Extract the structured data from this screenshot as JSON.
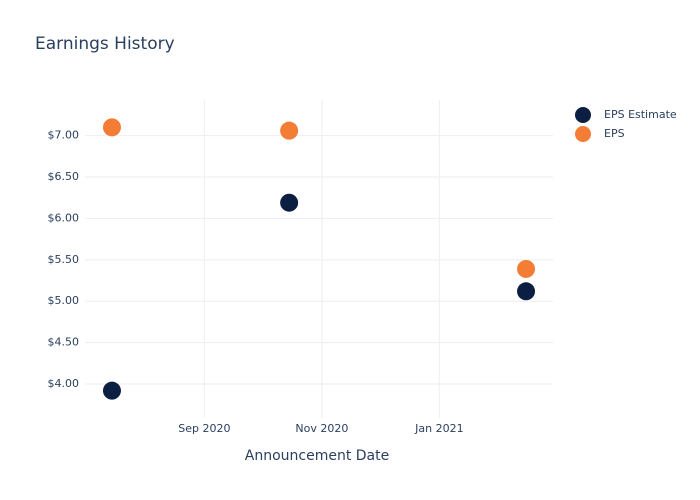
{
  "chart_data": {
    "type": "scatter",
    "title": "Earnings History",
    "x_label": "Announcement Date",
    "x": [
      "2020-07",
      "2020-10",
      "2021-02"
    ],
    "series": [
      {
        "name": "EPS Estimate",
        "color": "#0b1f43",
        "values": [
          3.92,
          6.19,
          5.12
        ]
      },
      {
        "name": "EPS",
        "color": "#f47d35",
        "values": [
          7.1,
          7.06,
          5.39
        ]
      }
    ],
    "xlim": [
      "2020-07",
      "2021-03"
    ],
    "xticks": [
      {
        "value": "2020-09",
        "label": "Sep 2020"
      },
      {
        "value": "2020-11",
        "label": "Nov 2020"
      },
      {
        "value": "2021-01",
        "label": "Jan 2021"
      }
    ],
    "ylim": [
      3.59,
      7.43
    ],
    "yticks": [
      {
        "value": 4,
        "label": "$4.00"
      },
      {
        "value": 4.5,
        "label": "$4.50"
      },
      {
        "value": 5,
        "label": "$5.00"
      },
      {
        "value": 5.5,
        "label": "$5.50"
      },
      {
        "value": 6,
        "label": "$6.00"
      },
      {
        "value": 6.5,
        "label": "$6.50"
      },
      {
        "value": 7,
        "label": "$7.00"
      }
    ],
    "grid": true,
    "legend": "top-right"
  }
}
